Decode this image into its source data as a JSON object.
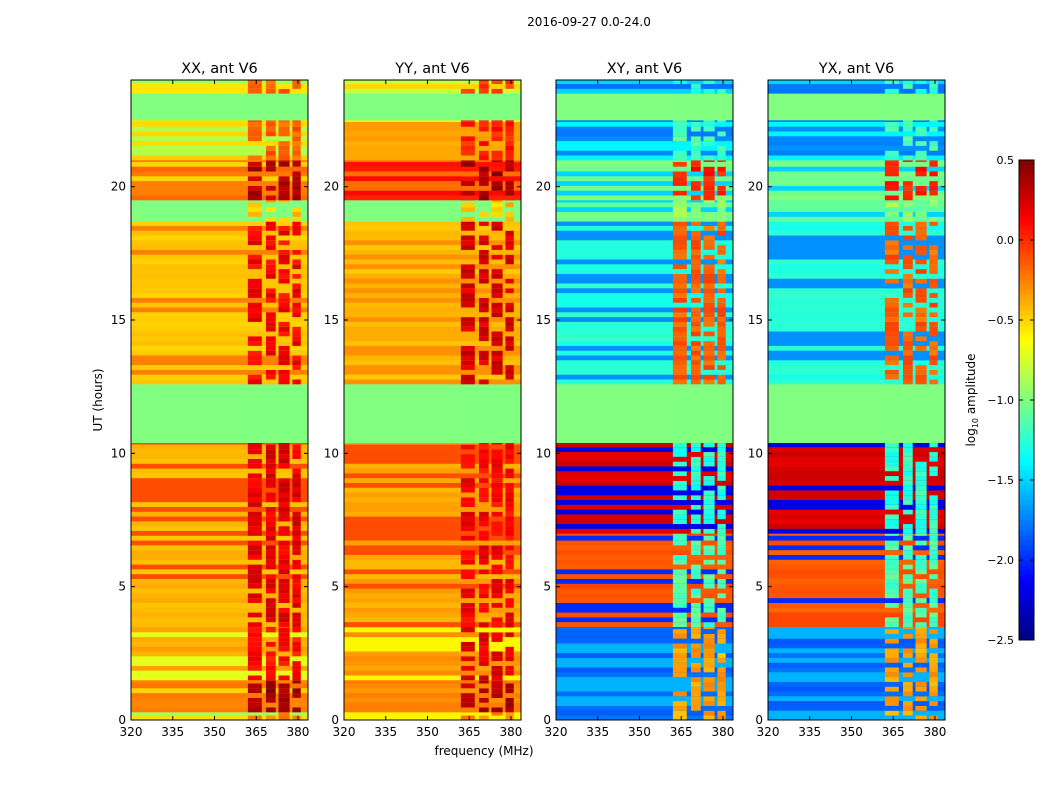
{
  "chart_data": {
    "type": "heatmap",
    "title": "2016-09-27 0.0-24.0",
    "xlabel": "frequency (MHz)",
    "ylabel": "UT (hours)",
    "xlim": [
      320,
      383.6
    ],
    "ylim": [
      0,
      24
    ],
    "xticks": [
      "320",
      "335",
      "350",
      "365",
      "380"
    ],
    "xtick_values": [
      320,
      335,
      350,
      365,
      380
    ],
    "yticks": [
      "0",
      "5",
      "10",
      "15",
      "20"
    ],
    "ytick_values": [
      0,
      5,
      10,
      15,
      20
    ],
    "colorbar": {
      "label_main": "log",
      "label_sub": "10",
      "label_rest": " amplitude",
      "range": [
        -2.5,
        0.5
      ],
      "ticks": [
        "0.5",
        "0.0",
        "−0.5",
        "−1.0",
        "−1.5",
        "−2.0",
        "−2.5"
      ],
      "tick_values": [
        0.5,
        0.0,
        -0.5,
        -1.0,
        -1.5,
        -2.0,
        -2.5
      ],
      "colormap": "jet"
    },
    "rfi_channels_mhz": [
      [
        362,
        367
      ],
      [
        368.5,
        372
      ],
      [
        373,
        377
      ],
      [
        378,
        381
      ]
    ],
    "panels": [
      {
        "title": "XX, ant V6",
        "bands": [
          [
            0,
            0.3,
            -0.6,
            -0.9,
            -0.3
          ],
          [
            0.3,
            1.5,
            -0.25,
            -0.5,
            0.35
          ],
          [
            1.5,
            3.5,
            -0.4,
            -0.7,
            0.05
          ],
          [
            3.5,
            10.4,
            -0.45,
            -0.1,
            0.15
          ],
          [
            10.4,
            12.6,
            -1.0,
            -1.0,
            -1.0
          ],
          [
            12.6,
            18.7,
            -0.5,
            -0.25,
            0.1
          ],
          [
            18.7,
            19.5,
            -1.0,
            -1.0,
            -0.5
          ],
          [
            19.5,
            21,
            -0.25,
            -0.5,
            0.3
          ],
          [
            21,
            22.5,
            -0.55,
            -0.85,
            -0.2
          ],
          [
            22.5,
            23.5,
            -1.0,
            -1.0,
            -1.0
          ],
          [
            23.5,
            24,
            -0.6,
            -0.9,
            -0.2
          ]
        ]
      },
      {
        "title": "YY, ant V6",
        "bands": [
          [
            0,
            0.3,
            -0.6,
            -0.9,
            -0.3
          ],
          [
            0.3,
            1.5,
            -0.3,
            -0.5,
            0.3
          ],
          [
            1.5,
            3.5,
            -0.35,
            -0.6,
            0.15
          ],
          [
            3.5,
            10.4,
            -0.4,
            -0.1,
            0.1
          ],
          [
            10.4,
            12.6,
            -1.0,
            -1.0,
            -1.0
          ],
          [
            12.6,
            18.7,
            -0.45,
            -0.3,
            0.2
          ],
          [
            18.7,
            19.5,
            -1.0,
            -1.0,
            -0.5
          ],
          [
            19.5,
            21,
            0.05,
            -0.2,
            0.35
          ],
          [
            21,
            22.5,
            -0.4,
            -0.7,
            0.0
          ],
          [
            22.5,
            23.5,
            -1.0,
            -1.0,
            -1.0
          ],
          [
            23.5,
            24,
            -0.5,
            -0.8,
            -0.1
          ]
        ]
      },
      {
        "title": "XY, ant V6",
        "bands": [
          [
            0,
            3.5,
            -1.85,
            -1.6,
            -0.4
          ],
          [
            3.5,
            7,
            -0.15,
            -2.0,
            -1.2
          ],
          [
            7,
            10.4,
            0.2,
            -2.2,
            -1.3
          ],
          [
            10.4,
            12.6,
            -1.0,
            -1.0,
            -1.0
          ],
          [
            12.6,
            18.7,
            -1.3,
            -1.7,
            -0.2
          ],
          [
            18.7,
            19.5,
            -1.1,
            -1.5,
            -1.0
          ],
          [
            19.5,
            21,
            -1.05,
            -1.5,
            0.0
          ],
          [
            21,
            22.5,
            -1.75,
            -1.4,
            -1.2
          ],
          [
            22.5,
            23.5,
            -1.0,
            -1.0,
            -1.0
          ],
          [
            23.5,
            24,
            -1.8,
            -1.5,
            -1.3
          ]
        ]
      },
      {
        "title": "YX, ant V6",
        "bands": [
          [
            0,
            3.5,
            -1.85,
            -1.6,
            -0.4
          ],
          [
            3.5,
            7,
            -0.15,
            -2.0,
            -1.2
          ],
          [
            7,
            10.4,
            0.2,
            -2.2,
            -1.3
          ],
          [
            10.4,
            12.6,
            -1.0,
            -1.0,
            -1.0
          ],
          [
            12.6,
            18.7,
            -1.3,
            -1.7,
            -0.2
          ],
          [
            18.7,
            19.5,
            -1.1,
            -1.5,
            -1.0
          ],
          [
            19.5,
            21,
            -1.05,
            -1.5,
            0.0
          ],
          [
            21,
            22.5,
            -1.75,
            -1.4,
            -1.2
          ],
          [
            22.5,
            23.5,
            -1.0,
            -1.0,
            -1.0
          ],
          [
            23.5,
            24,
            -1.8,
            -1.5,
            -1.3
          ]
        ]
      }
    ]
  }
}
